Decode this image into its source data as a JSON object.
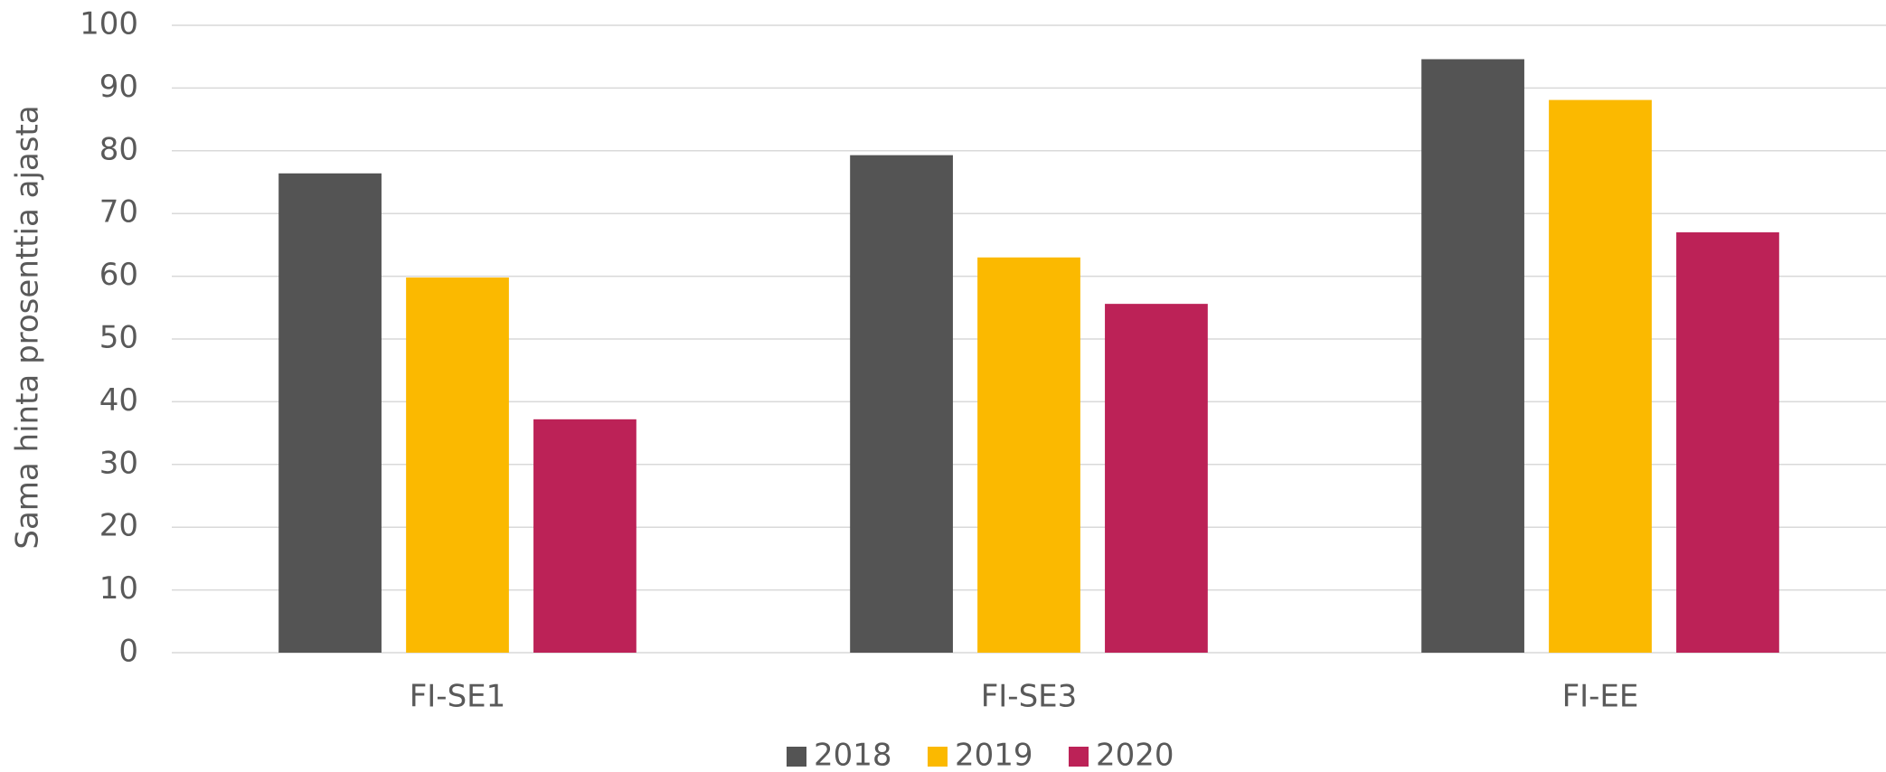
{
  "chart_data": {
    "type": "bar",
    "y_label": "Sama hinta prosenttia ajasta",
    "categories": [
      "FI-SE1",
      "FI-SE3",
      "FI-EE"
    ],
    "series": [
      {
        "name": "2018",
        "color": "#545454",
        "values": [
          76.4,
          79.3,
          94.6
        ]
      },
      {
        "name": "2019",
        "color": "#fbb900",
        "values": [
          59.8,
          63.0,
          88.1
        ]
      },
      {
        "name": "2020",
        "color": "#bc2257",
        "values": [
          37.2,
          55.6,
          67.0
        ]
      }
    ],
    "ylim": [
      0,
      100
    ],
    "yticks": [
      0,
      10,
      20,
      30,
      40,
      50,
      60,
      70,
      80,
      90,
      100
    ],
    "grid": true,
    "legend": "bottom"
  }
}
